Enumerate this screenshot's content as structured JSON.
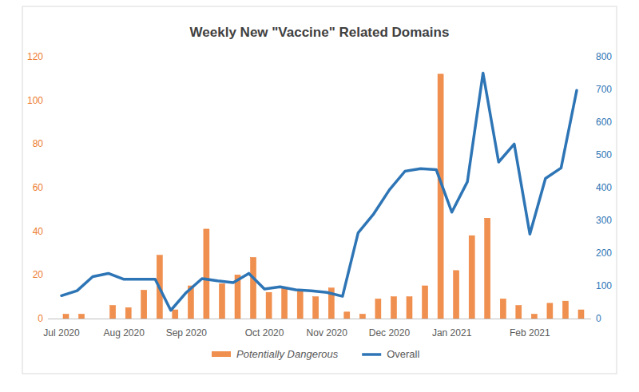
{
  "chart_data": {
    "type": "bar",
    "title": "Weekly New \"Vaccine\" Related Domains",
    "categories": [
      "Jul 2020",
      null,
      null,
      null,
      "Aug 2020",
      null,
      null,
      null,
      "Sep 2020",
      null,
      null,
      null,
      null,
      "Oct 2020",
      null,
      null,
      null,
      "Nov 2020",
      null,
      null,
      null,
      "Dec 2020",
      null,
      null,
      null,
      "Jan 2021",
      null,
      null,
      null,
      null,
      "Feb 2021",
      null,
      null,
      null
    ],
    "series": [
      {
        "name": "Potentially Dangerous",
        "type": "bar",
        "color": "#ED7D31",
        "values": [
          2,
          2,
          0,
          6,
          5,
          13,
          29,
          4,
          15,
          41,
          16,
          20,
          28,
          12,
          14,
          13,
          10,
          14,
          3,
          2,
          9,
          10,
          10,
          15,
          112,
          22,
          38,
          46,
          9,
          6,
          2,
          7,
          8,
          4
        ]
      },
      {
        "name": "Overall",
        "type": "line",
        "color": "#2E75B6",
        "axis": "y2",
        "values": [
          70,
          85,
          128,
          138,
          120,
          120,
          120,
          25,
          80,
          122,
          115,
          110,
          138,
          90,
          97,
          88,
          85,
          80,
          68,
          262,
          320,
          393,
          450,
          458,
          455,
          325,
          418,
          750,
          478,
          533,
          258,
          428,
          460,
          697
        ]
      }
    ],
    "ylim": [
      0,
      120
    ],
    "yticks": [
      0,
      20,
      40,
      60,
      80,
      100,
      120
    ],
    "y2lim": [
      0,
      800
    ],
    "y2ticks": [
      0,
      100,
      200,
      300,
      400,
      500,
      600,
      700,
      800
    ],
    "grid": false,
    "legend": "bottom"
  }
}
